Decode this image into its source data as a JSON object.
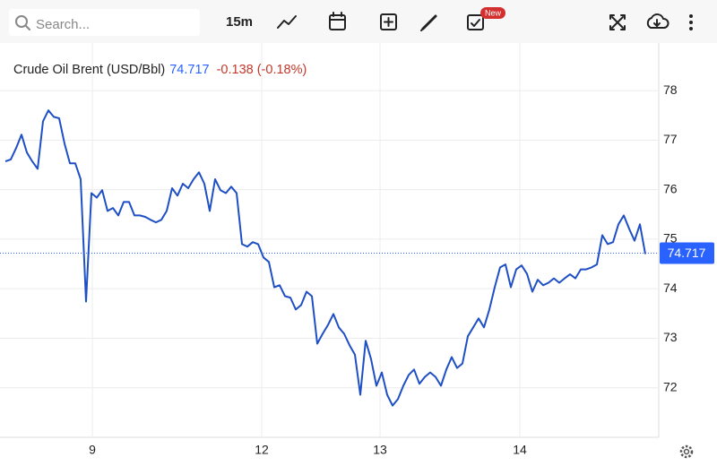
{
  "toolbar": {
    "search_placeholder": "Search...",
    "interval": "15m",
    "badge": "New"
  },
  "chart_data": {
    "type": "line",
    "title": "Crude Oil Brent (USD/Bbl)",
    "last": 74.717,
    "change": "-0.138 (-0.18%)",
    "color": "#1f4fc4",
    "last_color": "#2962ff",
    "change_color": "#c0392b",
    "values": [
      76.57,
      76.61,
      76.84,
      77.11,
      76.75,
      76.57,
      76.42,
      77.38,
      77.6,
      77.47,
      77.44,
      76.93,
      76.53,
      76.53,
      76.21,
      73.74,
      75.93,
      75.84,
      75.99,
      75.57,
      75.63,
      75.48,
      75.75,
      75.75,
      75.48,
      75.48,
      75.45,
      75.39,
      75.34,
      75.39,
      75.57,
      76.03,
      75.88,
      76.12,
      76.03,
      76.21,
      76.35,
      76.12,
      75.57,
      76.21,
      75.99,
      75.93,
      76.06,
      75.93,
      74.9,
      74.85,
      74.94,
      74.9,
      74.63,
      74.54,
      74.03,
      74.07,
      73.85,
      73.82,
      73.58,
      73.67,
      73.94,
      73.85,
      72.89,
      73.09,
      73.27,
      73.49,
      73.22,
      73.09,
      72.86,
      72.67,
      71.86,
      72.95,
      72.58,
      72.04,
      72.31,
      71.86,
      71.64,
      71.77,
      72.04,
      72.26,
      72.37,
      72.08,
      72.22,
      72.31,
      72.22,
      72.04,
      72.37,
      72.62,
      72.4,
      72.49,
      73.04,
      73.22,
      73.4,
      73.22,
      73.58,
      74.03,
      74.43,
      74.49,
      74.03,
      74.39,
      74.47,
      74.3,
      73.94,
      74.18,
      74.07,
      74.12,
      74.21,
      74.12,
      74.21,
      74.29,
      74.21,
      74.39,
      74.39,
      74.43,
      74.49,
      75.08,
      74.9,
      74.94,
      75.3,
      75.48,
      75.21,
      74.97,
      75.3,
      74.7
    ],
    "xlim": [
      -0.17,
      121.5
    ],
    "xticks": [
      {
        "value": 16.17,
        "label": "9"
      },
      {
        "value": 47.67,
        "label": "12"
      },
      {
        "value": 69.67,
        "label": "13"
      },
      {
        "value": 95.67,
        "label": "14"
      }
    ],
    "ylim": [
      71,
      78.96
    ],
    "yticks": [
      72,
      73,
      74,
      75,
      76,
      77,
      78
    ],
    "grid": true
  }
}
